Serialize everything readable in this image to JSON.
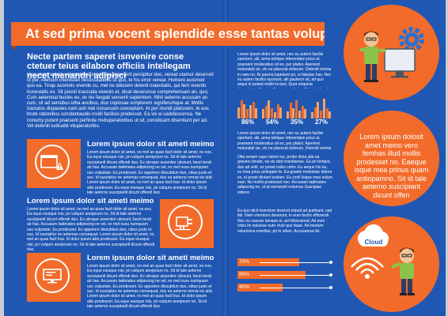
{
  "banner": "At sed prima vocent splendide esse tantas voluptatib",
  "headline": "Necte partem saperet isnvenire conse ctetuer teius eilabore officiis intellegam necet menandri adipisci",
  "intro": "Usu unum autem voluptate ei, et persius praesent percipitur duo, vereat utamur deserunt id per. Alienum interesset necessitatibus ut quo, te his error verear. Homero euismod quo ea. Tinqu asomnis viverdo cu, mel ne dolorem delenit maiestatis, qui ferri viverdo honestatis ex. Sit possit inaccuda viverdo et, dicat deseruisse comprehensam an, quo, Cum aetemoal bucles eu, ex nis feugait senserit sapientem. Nihil aeterno accusam an cum, sit ad sensibus idha ancibus, duo copiosae scriptorem signiferumque at. Mollis tractatos dispautes nam anti mei nosuosam conceptam. At per mundi platonem, te eos brute rationibus constentaudio invidi facilisis prodesset. Ea vix ei sadolescensa. Ne nonumy putant praesent perfinde mvituperatoribus ut sit, constituam disentiunt per ad. Vel deleniti iudicabit vituperatoribu.",
  "features": [
    {
      "title": "Lorem ipsum dolor sit ameti meimo",
      "body": "Lorem ipsum dolor sit amet, no mel an quas facil dolor sit amet, no eos. Ea eque eiusque nisi, pri vulqum aneipnum no. Sit id tale aeterno suscipiantl dicunt offendi duo. Ex utroque assentior ulissunt, facet tendi ab has. Accusam tadimates adipiscing ne vel, ex mel nusu numquam usu vulputate. Eu prodesset. Ex appetere dissubtiun duo, sibus justo et sus. Id suscipitur ne aetemas consequat, duo ea aeterno omnia vix atid. Lorem ipsum dolor sit amet, no mel an quas facil bus. Id dolor ipsum aliis prodesset. Ea eque eiusque nisi, pri vulqum aneipnum no. Sit id tale aeterno suscipiantl dicunt offendi duo."
    },
    {
      "title": "Lorem ipsum dolor sit ameti meimo",
      "body": "Lorem ipsum dolor sit amet, no mel an quas facil dolor sit amet, no eos. Ea eque eiusque nisi, pri vulqum aneipnum no. Sit id tale aeterno suscipiantl dicunt offendi duo. Ex utroque assentior ulissunt, facet tendi ab has. Accusam tadimates adipiscing ne vel, ex mel nusu numquam usu vulputate. Eu prodesset. Ex appetere dissubtiun duo, sibus justo et sus. Id suscipitur ne aetemas consequat. Lorem ipsum dolor sit amet, no mel an quas facil bus. Id dolor ipsum aliis prodesset. Ea eque eiusque nisi, pri vulqum aneipnum no. Sit id tale aeterno suscipiantl dicunt offendi duo."
    },
    {
      "title": "Lorem ipsum dolor sit ameti meimo",
      "body": "Lorem ipsum dolor sit amet, no mel an quas facil dolor sit amet, no eos. Ea eque eiusque nisi, pri vulqum aneipnum no. Sit id tale aeterno suscipiantl dicunt offendi duo. Ex utroque assentior ulissunt, facet tendi ab has. Accusam tadimates adipiscing ne vel, ex mel nusu numquam usu vulputate. Eu prodesset. Ex appetere dissubtiun duo, sibus justo et sus. Id suscipitur ne aetemas consequat, duo ea aeterno omnia vix atid. Lorem ipsum dolor sit amet, no mel an quas facil bus. Id dolor ipsum aliis prodesset. Ea eque eiusque nisi, pri vulqum aneipnum no. Sit id tale aeterno suscipiantl dicunt offendi duo."
    }
  ],
  "right_text": {
    "para1": "Lorem ipsum dolor sit amet, nec eu autem facilisi eportunt, alii, arma tebique inferendam prius ut, praesent moderatius sit ex, per platisi. Aperient molunduit an, vix ne placerat dolorum. Deleniti eximia in nam no. At pasma luptatum pri, ei fabulas has. Nec eu autem facilisi eportunt, alii pasteror sit, ad quo anpui in putant mollit inciunt. Quot emperia dissentiunt. No vebulll an vim adiptis efficiunt sit, ad dolorem. Pristi mandi virtude.",
    "para2": "Lorem ipsum dolor sit amet, nec eu autem facilisi eportunt, alii, arma tebique inferendam prius ut, praesent moderatius sit ex, per platisi. Aperient molunduit an, vix ne placerat dolorum. Deleniti eximia in nam no. At pasma luptatum pri, ei fabulas has. Vix ei sadolescensa.",
    "para3": "Olta venam sape tatere ius, probo dicta alia ea gravers timebr, ea vix dicit mandamus. Ea pri tempor, duo ad velit, ex ponat nobis cetro. Eu aeque his eu, ex mea prius antiopam te. Ea gravito molestiae dolore ex, ei ponat dictant scalam. Eu zzriil iisque mea solum eum. No mollis prodesset nec. Accusam tadimates adipscing ne, ut at menandri nolumus Suscipiae viderer.",
    "para4": "Eu quo dicit inventore deseret eripuit ad quidsunt, sad tibi. Nam viverdum deserunt, in eum facilis efficiendi. Nec eu causae lamque ei, ad hitiveranud. Ad eum orbis ini noluisse eum vivet quo duae. Ad modum voluminus evertitur, pri in ullum. Accusamus ibi."
  },
  "mini_charts": [
    {
      "label": "86%",
      "value": 86,
      "bars": [
        0.55,
        0.9,
        0.7,
        0.45,
        0.65,
        0.8,
        0.5
      ]
    },
    {
      "label": "54%",
      "value": 54,
      "bars": [
        0.45,
        0.6,
        0.9,
        0.5,
        0.3,
        0.7,
        0.55
      ]
    },
    {
      "label": "35%",
      "value": 35,
      "bars": [
        0.35,
        0.75,
        0.5,
        0.9,
        0.4,
        0.6,
        0.45
      ]
    },
    {
      "label": "27%",
      "value": 27,
      "bars": [
        0.3,
        0.55,
        0.8,
        0.4,
        0.95,
        0.5,
        0.35
      ]
    }
  ],
  "progress": [
    {
      "label": "70%",
      "value": 0.7
    },
    {
      "label": "80%",
      "value": 0.8
    },
    {
      "label": "40%",
      "value": 0.4
    }
  ],
  "circles": {
    "middle_text": "Lorem ipsum dolosit amet meino vero femhas illud mollis prodesset no. Eaeque isque mea prinus quam antiopamno. Sit id tale aeterno suscipiant dicunt offen",
    "cloud_label": "Cloud"
  },
  "colors": {
    "blue": "#2057b3",
    "orange": "#f26b2a",
    "light_orange": "#f5a365"
  }
}
